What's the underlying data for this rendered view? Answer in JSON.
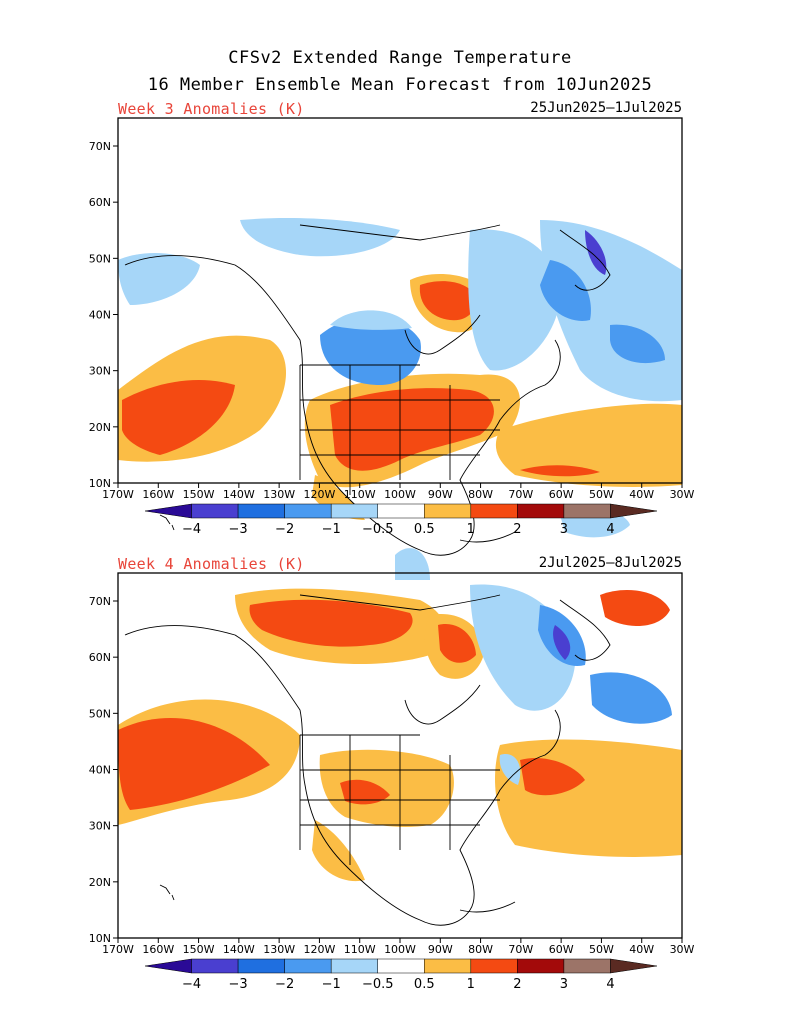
{
  "title_line1": "CFSv2 Extended Range Temperature",
  "title_line2": "16 Member Ensemble Mean Forecast from 10Jun2025",
  "panels": [
    {
      "week_label": "Week 3 Anomalies (K)",
      "date_range": "25Jun2025–1Jul2025"
    },
    {
      "week_label": "Week 4 Anomalies (K)",
      "date_range": "2Jul2025–8Jul2025"
    }
  ],
  "lat_labels": [
    "70N",
    "60N",
    "50N",
    "40N",
    "30N",
    "20N",
    "10N"
  ],
  "lon_labels": [
    "170W",
    "160W",
    "150W",
    "140W",
    "130W",
    "120W",
    "110W",
    "100W",
    "90W",
    "80W",
    "70W",
    "60W",
    "50W",
    "40W",
    "30W"
  ],
  "colorbar": {
    "labels": [
      "−4",
      "−3",
      "−2",
      "−1",
      "−0.5",
      "0.5",
      "1",
      "2",
      "3",
      "4"
    ],
    "colors": [
      "#2a0a96",
      "#4a3fd0",
      "#1f6fe0",
      "#4a9af0",
      "#a6d6f8",
      "#ffffff",
      "#fbbd45",
      "#f44a12",
      "#a30a0a",
      "#9c7468",
      "#5a2a22"
    ]
  },
  "colors": {
    "warm_light": "#fbbd45",
    "warm": "#f44a12",
    "warm_dark": "#a30a0a",
    "cool_light": "#a6d6f8",
    "cool": "#4a9af0",
    "cool_mid": "#1f6fe0",
    "cool_dark": "#4a3fd0"
  }
}
